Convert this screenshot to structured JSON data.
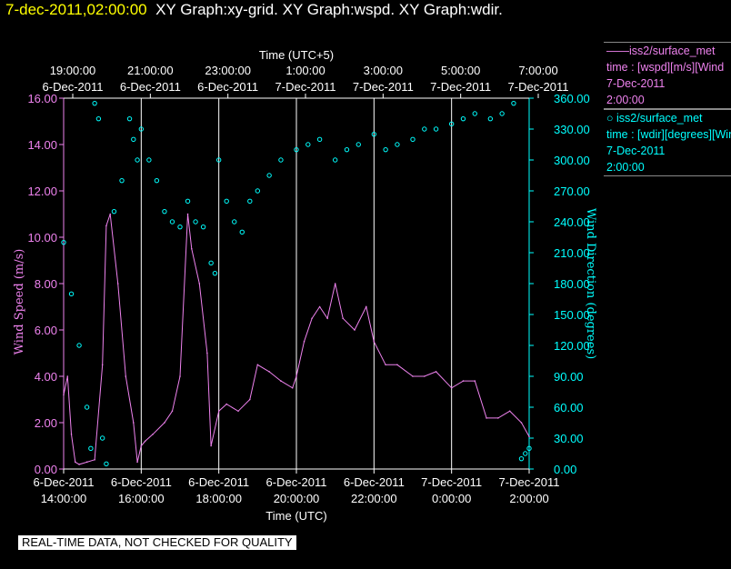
{
  "header": {
    "datetime": "7-dec-2011,02:00:00",
    "graphs": "XY Graph:xy-grid.  XY Graph:wspd.  XY Graph:wdir."
  },
  "legend": [
    {
      "name": "iss2/surface_met",
      "marker": "line",
      "lines": [
        "time : [wspd][m/s][Wind",
        "7-Dec-2011",
        "2:00:00"
      ]
    },
    {
      "name": "iss2/surface_met",
      "marker": "circle",
      "lines": [
        "time : [wdir][degrees][Win",
        "7-Dec-2011",
        "2:00:00"
      ]
    }
  ],
  "footer": "REAL-TIME DATA, NOT CHECKED FOR QUALITY",
  "chart_data": {
    "type": "scatter",
    "xlabel_top": "Time (UTC+5)",
    "xlabel_bottom": "Time (UTC)",
    "ylabel_left": "Wind Speed (m/s)",
    "ylabel_right": "Wind Direction (degrees)",
    "xlim_hours_utc": [
      14,
      26
    ],
    "ylim_left": [
      0,
      16
    ],
    "ylim_right": [
      0,
      360
    ],
    "grid": "vertical-only",
    "bottom_ticks": [
      [
        "6-Dec-2011",
        "14:00:00"
      ],
      [
        "6-Dec-2011",
        "16:00:00"
      ],
      [
        "6-Dec-2011",
        "18:00:00"
      ],
      [
        "6-Dec-2011",
        "20:00:00"
      ],
      [
        "6-Dec-2011",
        "22:00:00"
      ],
      [
        "7-Dec-2011",
        "0:00:00"
      ],
      [
        "7-Dec-2011",
        "2:00:00"
      ]
    ],
    "top_ticks": [
      [
        "19:00:00",
        "6-Dec-2011"
      ],
      [
        "21:00:00",
        "6-Dec-2011"
      ],
      [
        "23:00:00",
        "6-Dec-2011"
      ],
      [
        "1:00:00",
        "7-Dec-2011"
      ],
      [
        "3:00:00",
        "7-Dec-2011"
      ],
      [
        "5:00:00",
        "7-Dec-2011"
      ],
      [
        "7:00:00",
        "7-Dec-2011"
      ]
    ],
    "left_tick_labels": [
      "0.00",
      "2.00",
      "4.00",
      "6.00",
      "8.00",
      "10.00",
      "12.00",
      "14.00",
      "16.00"
    ],
    "right_tick_labels": [
      "0.00",
      "30.00",
      "60.00",
      "90.00",
      "120.00",
      "150.00",
      "180.00",
      "210.00",
      "240.00",
      "270.00",
      "300.00",
      "330.00",
      "360.00"
    ],
    "series": [
      {
        "name": "iss2/surface_met",
        "axis": "left",
        "color": "#ee82ee",
        "style": "line",
        "x": [
          14.0,
          14.1,
          14.2,
          14.3,
          14.4,
          14.6,
          14.8,
          15.0,
          15.1,
          15.2,
          15.4,
          15.6,
          15.8,
          15.9,
          16.0,
          16.1,
          16.3,
          16.6,
          16.8,
          17.0,
          17.2,
          17.3,
          17.5,
          17.7,
          17.8,
          18.0,
          18.2,
          18.5,
          18.8,
          19.0,
          19.3,
          19.6,
          19.9,
          20.0,
          20.2,
          20.4,
          20.6,
          20.8,
          21.0,
          21.2,
          21.5,
          21.8,
          22.0,
          22.3,
          22.6,
          23.0,
          23.3,
          23.6,
          24.0,
          24.3,
          24.6,
          24.9,
          25.2,
          25.5,
          25.8,
          26.0
        ],
        "y": [
          3.2,
          4.0,
          1.5,
          0.3,
          0.2,
          0.3,
          0.4,
          4.5,
          10.5,
          11.0,
          8.0,
          4.0,
          2.0,
          0.3,
          1.0,
          1.2,
          1.5,
          2.0,
          2.5,
          4.0,
          11.0,
          9.5,
          8.0,
          5.0,
          1.0,
          2.5,
          2.8,
          2.5,
          3.0,
          4.5,
          4.2,
          3.8,
          3.5,
          4.0,
          5.5,
          6.5,
          7.0,
          6.5,
          8.0,
          6.5,
          6.0,
          7.0,
          5.5,
          4.5,
          4.5,
          4.0,
          4.0,
          4.2,
          3.5,
          3.8,
          3.8,
          2.2,
          2.2,
          2.5,
          2.0,
          1.4
        ]
      },
      {
        "name": "iss2/surface_met",
        "axis": "right",
        "color": "#00ffff",
        "style": "points",
        "x": [
          14.0,
          14.2,
          14.4,
          14.6,
          14.7,
          14.8,
          14.9,
          15.0,
          15.1,
          15.3,
          15.5,
          15.7,
          15.8,
          15.9,
          16.0,
          16.2,
          16.4,
          16.6,
          16.8,
          17.0,
          17.2,
          17.4,
          17.6,
          17.8,
          17.9,
          18.0,
          18.2,
          18.4,
          18.6,
          18.8,
          19.0,
          19.3,
          19.6,
          20.0,
          20.3,
          20.6,
          21.0,
          21.3,
          21.6,
          22.0,
          22.3,
          22.6,
          23.0,
          23.3,
          23.6,
          24.0,
          24.3,
          24.6,
          25.0,
          25.3,
          25.6,
          25.8,
          25.9,
          26.0
        ],
        "y": [
          220,
          170,
          120,
          60,
          20,
          355,
          340,
          30,
          5,
          250,
          280,
          340,
          320,
          300,
          330,
          300,
          280,
          250,
          240,
          235,
          260,
          240,
          235,
          200,
          190,
          300,
          260,
          240,
          230,
          260,
          270,
          285,
          300,
          310,
          315,
          320,
          300,
          310,
          315,
          325,
          310,
          315,
          320,
          330,
          330,
          335,
          340,
          345,
          340,
          345,
          355,
          10,
          15,
          20
        ]
      }
    ]
  }
}
